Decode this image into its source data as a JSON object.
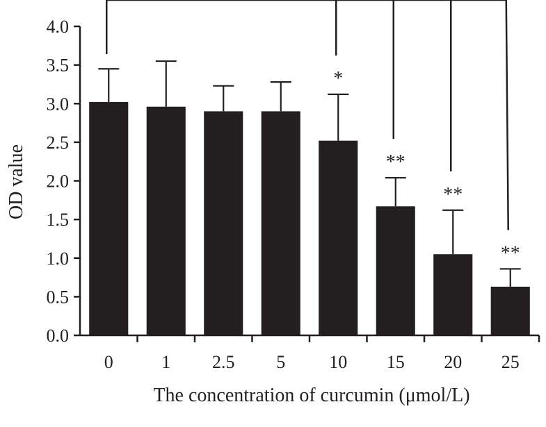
{
  "chart_data": {
    "type": "bar",
    "categories": [
      "0",
      "1",
      "2.5",
      "5",
      "10",
      "15",
      "20",
      "25"
    ],
    "values": [
      3.02,
      2.96,
      2.9,
      2.9,
      2.52,
      1.67,
      1.05,
      0.63
    ],
    "errors": [
      0.43,
      0.59,
      0.33,
      0.38,
      0.6,
      0.37,
      0.57,
      0.23
    ],
    "significance": [
      "",
      "",
      "",
      "",
      "*",
      "**",
      "**",
      "**"
    ],
    "ylim": [
      0,
      4.0
    ],
    "yticks": [
      "0.0",
      "0.5",
      "1.0",
      "1.5",
      "2.0",
      "2.5",
      "3.0",
      "3.5",
      "4.0"
    ],
    "xlabel": "The concentration of curcumin (μmol/L)",
    "ylabel": "OD value",
    "bar_color": "#231f20",
    "comparison_bracket": {
      "from": "0",
      "to": [
        "10",
        "15",
        "20",
        "25"
      ]
    }
  }
}
